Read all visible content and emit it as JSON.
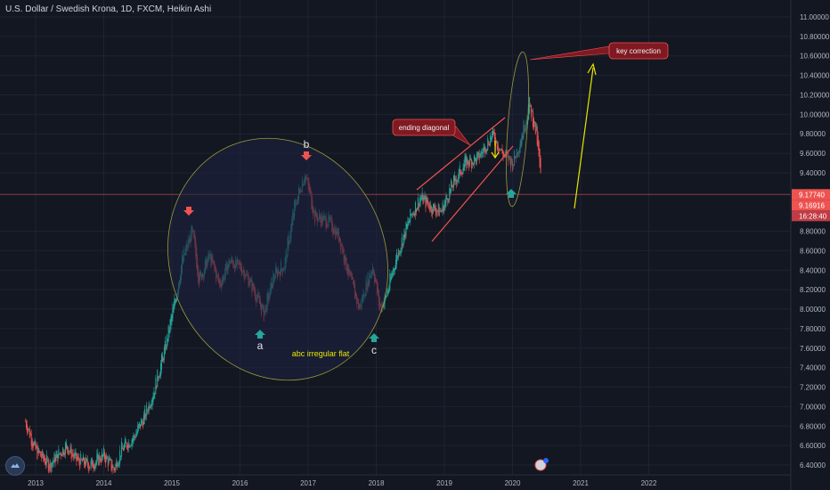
{
  "header": {
    "title": "U.S. Dollar / Swedish Krona, 1D, FXCM, Heikin Ashi"
  },
  "colors": {
    "background": "#131722",
    "grid": "#1f2330",
    "text": "#b2b5be",
    "up": "#26a69a",
    "down": "#ef5350",
    "ellipse_fill": "#1c2240",
    "ellipse_stroke": "#9b9b3a",
    "price_line": "#8c3a48",
    "annotation": "#e6e600",
    "callout_fill": "#801922",
    "callout_stroke": "#ef5350",
    "price_badge_last": "#ef5350",
    "price_badge_time": "#c13b45"
  },
  "chart_data": {
    "type": "candlestick",
    "style": "Heikin Ashi",
    "interval": "1D",
    "symbol": "USDSEK",
    "x_ticks": [
      "2013",
      "2014",
      "2015",
      "2016",
      "2017",
      "2018",
      "2019",
      "2020",
      "2021",
      "2022"
    ],
    "y_ticks": [
      "6.40000",
      "6.60000",
      "6.80000",
      "7.00000",
      "7.20000",
      "7.40000",
      "7.60000",
      "7.80000",
      "8.00000",
      "8.20000",
      "8.40000",
      "8.60000",
      "8.80000",
      "9.40000",
      "9.60000",
      "9.80000",
      "10.00000",
      "10.20000",
      "10.40000",
      "10.60000",
      "10.80000",
      "11.00000"
    ],
    "ylim": [
      6.33,
      11.1
    ],
    "last_price": "9.17740",
    "price_badge_2": "9.16916",
    "price_badge_3": "16:28:40",
    "series": [
      {
        "values": [
          [
            2012.85,
            6.85
          ],
          [
            2013.0,
            6.55
          ],
          [
            2013.2,
            6.4
          ],
          [
            2013.45,
            6.6
          ],
          [
            2013.6,
            6.45
          ],
          [
            2013.8,
            6.4
          ],
          [
            2014.0,
            6.5
          ],
          [
            2014.15,
            6.35
          ],
          [
            2014.25,
            6.55
          ],
          [
            2014.45,
            6.7
          ],
          [
            2014.6,
            6.9
          ],
          [
            2014.75,
            7.2
          ],
          [
            2014.9,
            7.6
          ],
          [
            2015.05,
            8.1
          ],
          [
            2015.15,
            8.5
          ],
          [
            2015.3,
            8.8
          ],
          [
            2015.4,
            8.3
          ],
          [
            2015.55,
            8.55
          ],
          [
            2015.7,
            8.25
          ],
          [
            2015.85,
            8.5
          ],
          [
            2016.05,
            8.4
          ],
          [
            2016.2,
            8.2
          ],
          [
            2016.35,
            7.95
          ],
          [
            2016.5,
            8.35
          ],
          [
            2016.65,
            8.45
          ],
          [
            2016.8,
            9.05
          ],
          [
            2016.95,
            9.4
          ],
          [
            2017.1,
            8.95
          ],
          [
            2017.3,
            8.9
          ],
          [
            2017.45,
            8.75
          ],
          [
            2017.6,
            8.35
          ],
          [
            2017.75,
            8.0
          ],
          [
            2017.85,
            8.25
          ],
          [
            2017.95,
            8.45
          ],
          [
            2018.05,
            8.0
          ],
          [
            2018.15,
            8.15
          ],
          [
            2018.3,
            8.55
          ],
          [
            2018.5,
            8.95
          ],
          [
            2018.65,
            9.15
          ],
          [
            2018.8,
            9.05
          ],
          [
            2018.95,
            9.0
          ],
          [
            2019.1,
            9.25
          ],
          [
            2019.3,
            9.5
          ],
          [
            2019.5,
            9.55
          ],
          [
            2019.7,
            9.8
          ],
          [
            2019.85,
            9.6
          ],
          [
            2020.0,
            9.5
          ],
          [
            2020.1,
            9.7
          ],
          [
            2020.25,
            10.1
          ],
          [
            2020.35,
            9.8
          ],
          [
            2020.42,
            9.3
          ]
        ]
      }
    ],
    "annotations": {
      "wave_a": "a",
      "wave_b": "b",
      "wave_c": "c",
      "flat_label": "abc irregular flat",
      "diagonal_label": "ending diagonal",
      "correction_label": "key correction"
    }
  }
}
